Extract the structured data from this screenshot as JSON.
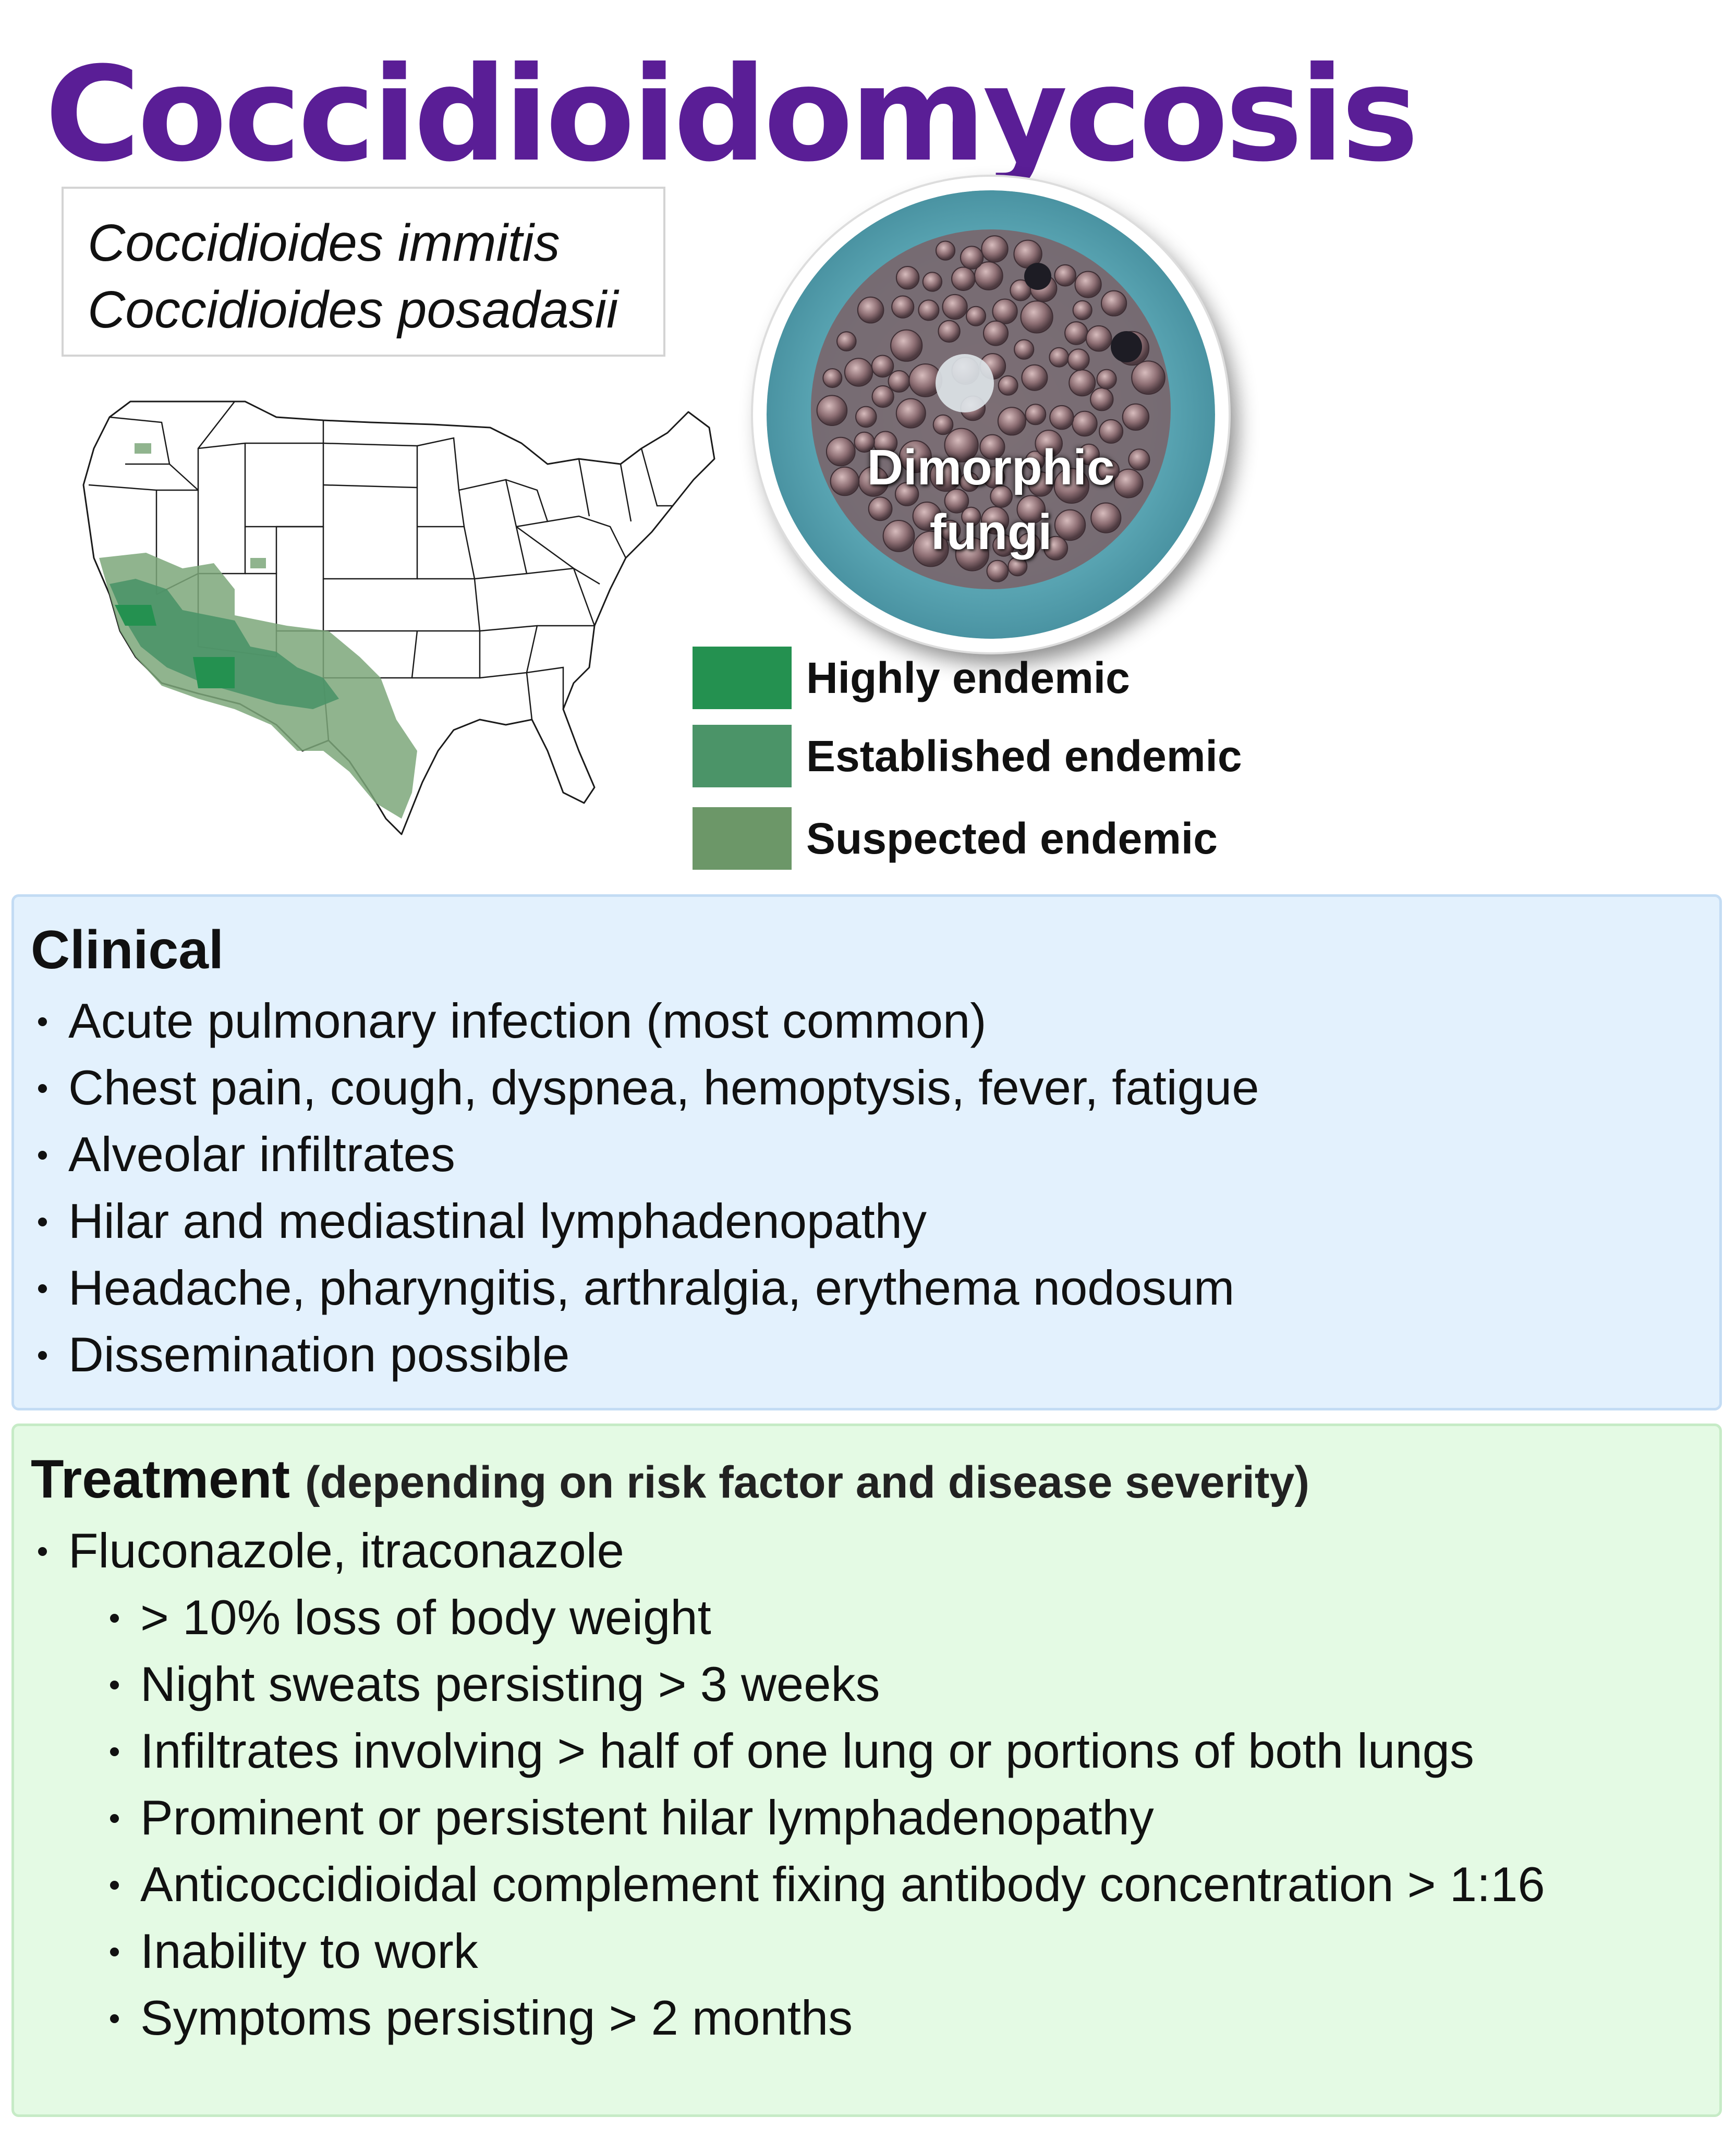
{
  "title": "Coccidioidomycosis",
  "species": [
    "Coccidioides immitis",
    "Coccidioides posadasii"
  ],
  "image_label": [
    "Dimorphic",
    "fungi"
  ],
  "legend": [
    {
      "label": "Highly endemic",
      "color": "#249150"
    },
    {
      "label": "Established endemic",
      "color": "#4b9468"
    },
    {
      "label": "Suspected endemic",
      "color": "#6c9768"
    }
  ],
  "clinical": {
    "heading": "Clinical",
    "items": [
      "Acute pulmonary infection (most common)",
      "Chest pain, cough, dyspnea, hemoptysis, fever, fatigue",
      "Alveolar infiltrates",
      "Hilar and mediastinal lymphadenopathy",
      "Headache, pharyngitis, arthralgia, erythema nodosum",
      "Dissemination possible"
    ]
  },
  "treatment": {
    "heading": "Treatment",
    "subheading": "(depending on risk factor and disease severity)",
    "items": [
      "Fluconazole, itraconazole",
      "> 10% loss of body weight",
      "Night sweats persisting > 3 weeks",
      "Infiltrates involving > half of one lung or portions of both lungs",
      "Prominent or persistent hilar lymphadenopathy",
      "Anticoccidioidal complement fixing antibody concentration > 1:16",
      "Inability to work",
      "Symptoms persisting > 2 months"
    ]
  },
  "colors": {
    "title": "#5a1e96",
    "clinical_bg": "#e3f1fd",
    "treatment_bg": "#e4fae4",
    "spherule_bg": "#5ba5b3"
  }
}
